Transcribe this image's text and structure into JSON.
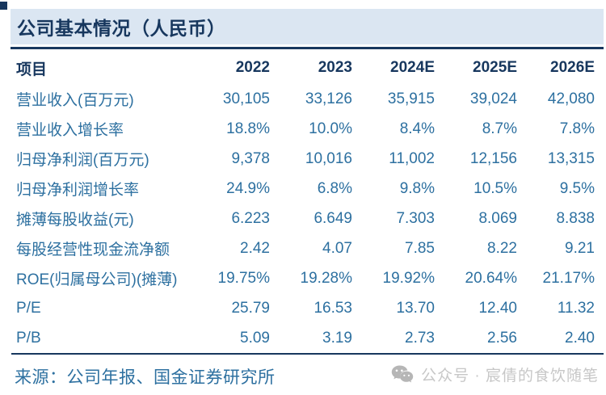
{
  "title": "公司基本情况（人民币）",
  "table": {
    "columns": [
      "项目",
      "2022",
      "2023",
      "2024E",
      "2025E",
      "2026E"
    ],
    "rows": [
      {
        "label": "营业收入(百万元)",
        "values": [
          "30,105",
          "33,126",
          "35,915",
          "39,024",
          "42,080"
        ]
      },
      {
        "label": "营业收入增长率",
        "values": [
          "18.8%",
          "10.0%",
          "8.4%",
          "8.7%",
          "7.8%"
        ]
      },
      {
        "label": "归母净利润(百万元)",
        "values": [
          "9,378",
          "10,016",
          "11,002",
          "12,156",
          "13,315"
        ]
      },
      {
        "label": "归母净利润增长率",
        "values": [
          "24.9%",
          "6.8%",
          "9.8%",
          "10.5%",
          "9.5%"
        ]
      },
      {
        "label": "摊薄每股收益(元)",
        "values": [
          "6.223",
          "6.649",
          "7.303",
          "8.069",
          "8.838"
        ]
      },
      {
        "label": "每股经营性现金流净额",
        "values": [
          "2.42",
          "4.07",
          "7.85",
          "8.22",
          "9.21"
        ]
      },
      {
        "label": "ROE(归属母公司)(摊薄)",
        "values": [
          "19.75%",
          "19.28%",
          "19.92%",
          "20.64%",
          "21.17%"
        ]
      },
      {
        "label": "P/E",
        "values": [
          "25.79",
          "16.53",
          "13.70",
          "12.40",
          "11.32"
        ]
      },
      {
        "label": "P/B",
        "values": [
          "5.09",
          "3.19",
          "2.73",
          "2.56",
          "2.40"
        ]
      }
    ]
  },
  "footer": {
    "source": "来源：公司年报、国金证券研究所"
  },
  "watermark": {
    "icon": "wechat-icon",
    "text": "公众号 · 宸倩的食饮随笔"
  },
  "colors": {
    "title_text": "#17375e",
    "titlebar_bg": "#dbe6f2",
    "rule": "#17375e",
    "body_text": "#2d70a0",
    "watermark_text": "#c7c7c7",
    "watermark_icon": "#b6b6b6"
  }
}
